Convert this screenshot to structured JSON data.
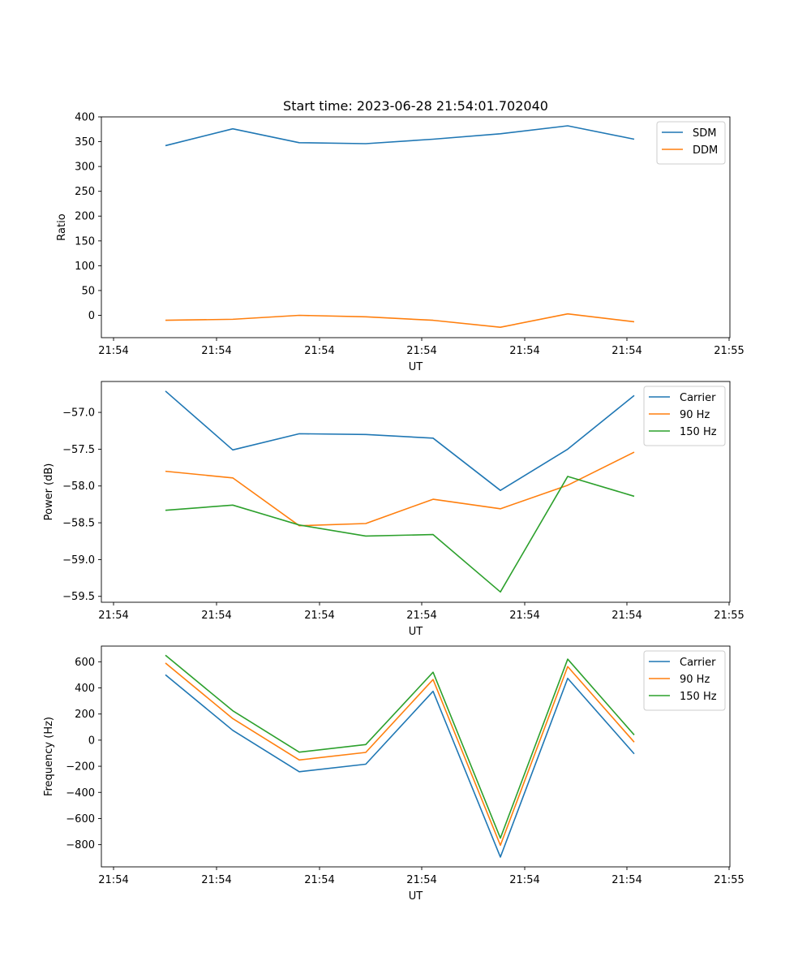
{
  "figure": {
    "title": "Start time: 2023-06-28 21:54:01.702040"
  },
  "chart_data": [
    {
      "type": "line",
      "title": "Start time: 2023-06-28 21:54:01.702040",
      "xlabel": "UT",
      "ylabel": "Ratio",
      "x_tick_labels": [
        "21:54",
        "21:54",
        "21:54",
        "21:54",
        "21:54",
        "21:54",
        "21:55"
      ],
      "y_ticks": [
        0,
        50,
        100,
        150,
        200,
        250,
        300,
        350,
        400
      ],
      "ylim": [
        -45,
        400
      ],
      "legend": "top-right",
      "grid": false,
      "series": [
        {
          "name": "SDM",
          "color": "#1f77b4",
          "values": [
            342,
            376,
            348,
            346,
            355,
            366,
            382,
            355
          ]
        },
        {
          "name": "DDM",
          "color": "#ff7f0e",
          "values": [
            -10,
            -8,
            0,
            -3,
            -10,
            -24,
            3,
            -13
          ]
        }
      ]
    },
    {
      "type": "line",
      "title": "",
      "xlabel": "UT",
      "ylabel": "Power (dB)",
      "x_tick_labels": [
        "21:54",
        "21:54",
        "21:54",
        "21:54",
        "21:54",
        "21:54",
        "21:55"
      ],
      "y_ticks": [
        -57.0,
        -57.5,
        -58.0,
        -58.5,
        -59.0,
        -59.5
      ],
      "y_tick_labels": [
        "−57.0",
        "−57.5",
        "−58.0",
        "−58.5",
        "−59.0",
        "−59.5"
      ],
      "ylim": [
        -59.58,
        -56.58
      ],
      "legend": "top-right",
      "grid": false,
      "series": [
        {
          "name": "Carrier",
          "color": "#1f77b4",
          "values": [
            -56.71,
            -57.51,
            -57.29,
            -57.3,
            -57.35,
            -58.06,
            -57.5,
            -56.77
          ]
        },
        {
          "name": "90 Hz",
          "color": "#ff7f0e",
          "values": [
            -57.8,
            -57.89,
            -58.54,
            -58.51,
            -58.18,
            -58.31,
            -57.99,
            -57.54
          ]
        },
        {
          "name": "150 Hz",
          "color": "#2ca02c",
          "values": [
            -58.33,
            -58.26,
            -58.53,
            -58.68,
            -58.66,
            -59.44,
            -57.87,
            -58.14
          ]
        }
      ]
    },
    {
      "type": "line",
      "title": "",
      "xlabel": "UT",
      "ylabel": "Frequency (Hz)",
      "x_tick_labels": [
        "21:54",
        "21:54",
        "21:54",
        "21:54",
        "21:54",
        "21:54",
        "21:55"
      ],
      "y_ticks": [
        600,
        400,
        200,
        0,
        -200,
        -400,
        -600,
        -800
      ],
      "y_tick_labels": [
        "600",
        "400",
        "200",
        "0",
        "−200",
        "−400",
        "−600",
        "−800"
      ],
      "ylim": [
        -970,
        720
      ],
      "legend": "top-right",
      "grid": false,
      "series": [
        {
          "name": "Carrier",
          "color": "#1f77b4",
          "values": [
            500,
            75,
            -242,
            -184,
            374,
            -895,
            473,
            -105
          ]
        },
        {
          "name": "90 Hz",
          "color": "#ff7f0e",
          "values": [
            590,
            165,
            -152,
            -94,
            464,
            -805,
            563,
            -15
          ]
        },
        {
          "name": "150 Hz",
          "color": "#2ca02c",
          "values": [
            650,
            225,
            -92,
            -34,
            520,
            -750,
            620,
            40
          ]
        }
      ]
    }
  ]
}
